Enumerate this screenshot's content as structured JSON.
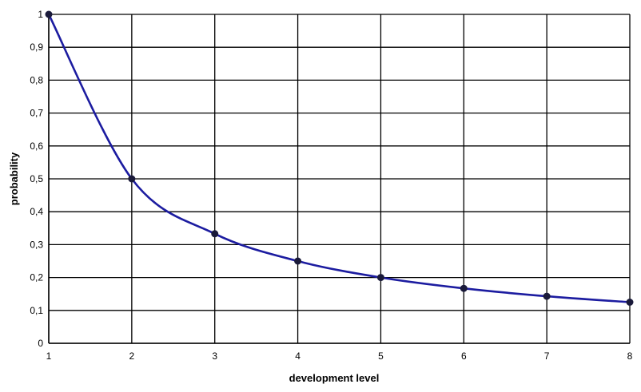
{
  "chart_data": {
    "type": "line",
    "xlabel": "development level",
    "ylabel": "probability",
    "x": [
      1,
      2,
      3,
      4,
      5,
      6,
      7,
      8
    ],
    "series": [
      {
        "values": [
          1,
          0.5,
          0.333,
          0.25,
          0.2,
          0.167,
          0.143,
          0.125
        ]
      }
    ],
    "xlim": [
      1,
      8
    ],
    "ylim": [
      0,
      1
    ],
    "xticks": [
      "1",
      "2",
      "3",
      "4",
      "5",
      "6",
      "7",
      "8"
    ],
    "yticks": [
      "0",
      "0,1",
      "0,2",
      "0,3",
      "0,4",
      "0,5",
      "0,6",
      "0,7",
      "0,8",
      "0,9",
      "1"
    ],
    "grid": true,
    "legend": "none",
    "curve_color": "#1c1ca0",
    "marker_color": "#1a1a3a"
  }
}
